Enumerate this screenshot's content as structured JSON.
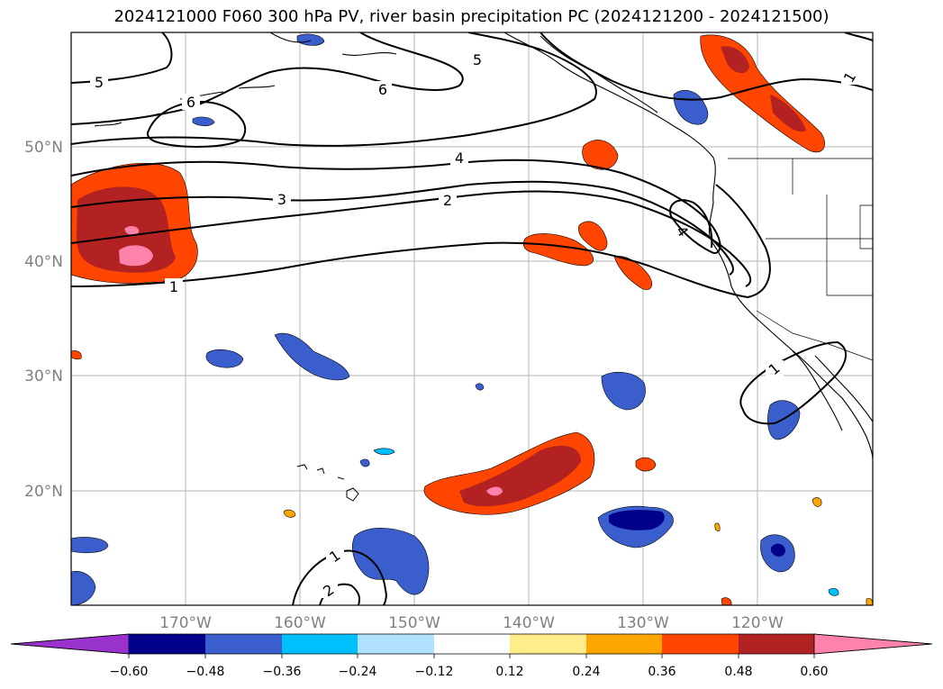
{
  "title": "2024121000 F060 300 hPa PV, river basin precipitation PC (2024121200 - 2024121500)",
  "longitude_labels": [
    "170°W",
    "160°W",
    "150°W",
    "140°W",
    "130°W",
    "120°W"
  ],
  "latitude_labels": [
    "50°N",
    "40°N",
    "30°N",
    "20°N"
  ],
  "colorbar": {
    "tick_labels": [
      "−0.60",
      "−0.48",
      "−0.36",
      "−0.24",
      "−0.12",
      "0.12",
      "0.24",
      "0.36",
      "0.48",
      "0.60"
    ],
    "colors": [
      "#9932cc",
      "#00008b",
      "#3a5fcd",
      "#00bfff",
      "#b0e2ff",
      "#ffffff",
      "#ffec8b",
      "#ffa500",
      "#ff4500",
      "#b22222",
      "#ff82ab"
    ],
    "extend": "both"
  },
  "contour_labels": [
    "5",
    "6",
    "5",
    "6",
    "4",
    "3",
    "2",
    "1",
    "4",
    "1",
    "1",
    "1",
    "2"
  ],
  "map": {
    "projection": "cylindrical",
    "lon_range": [
      -180,
      -110
    ],
    "lat_range": [
      10,
      60
    ],
    "gridlines": true,
    "field": "300 hPa potential vorticity (contours)",
    "fill": "river basin precipitation principal component"
  }
}
